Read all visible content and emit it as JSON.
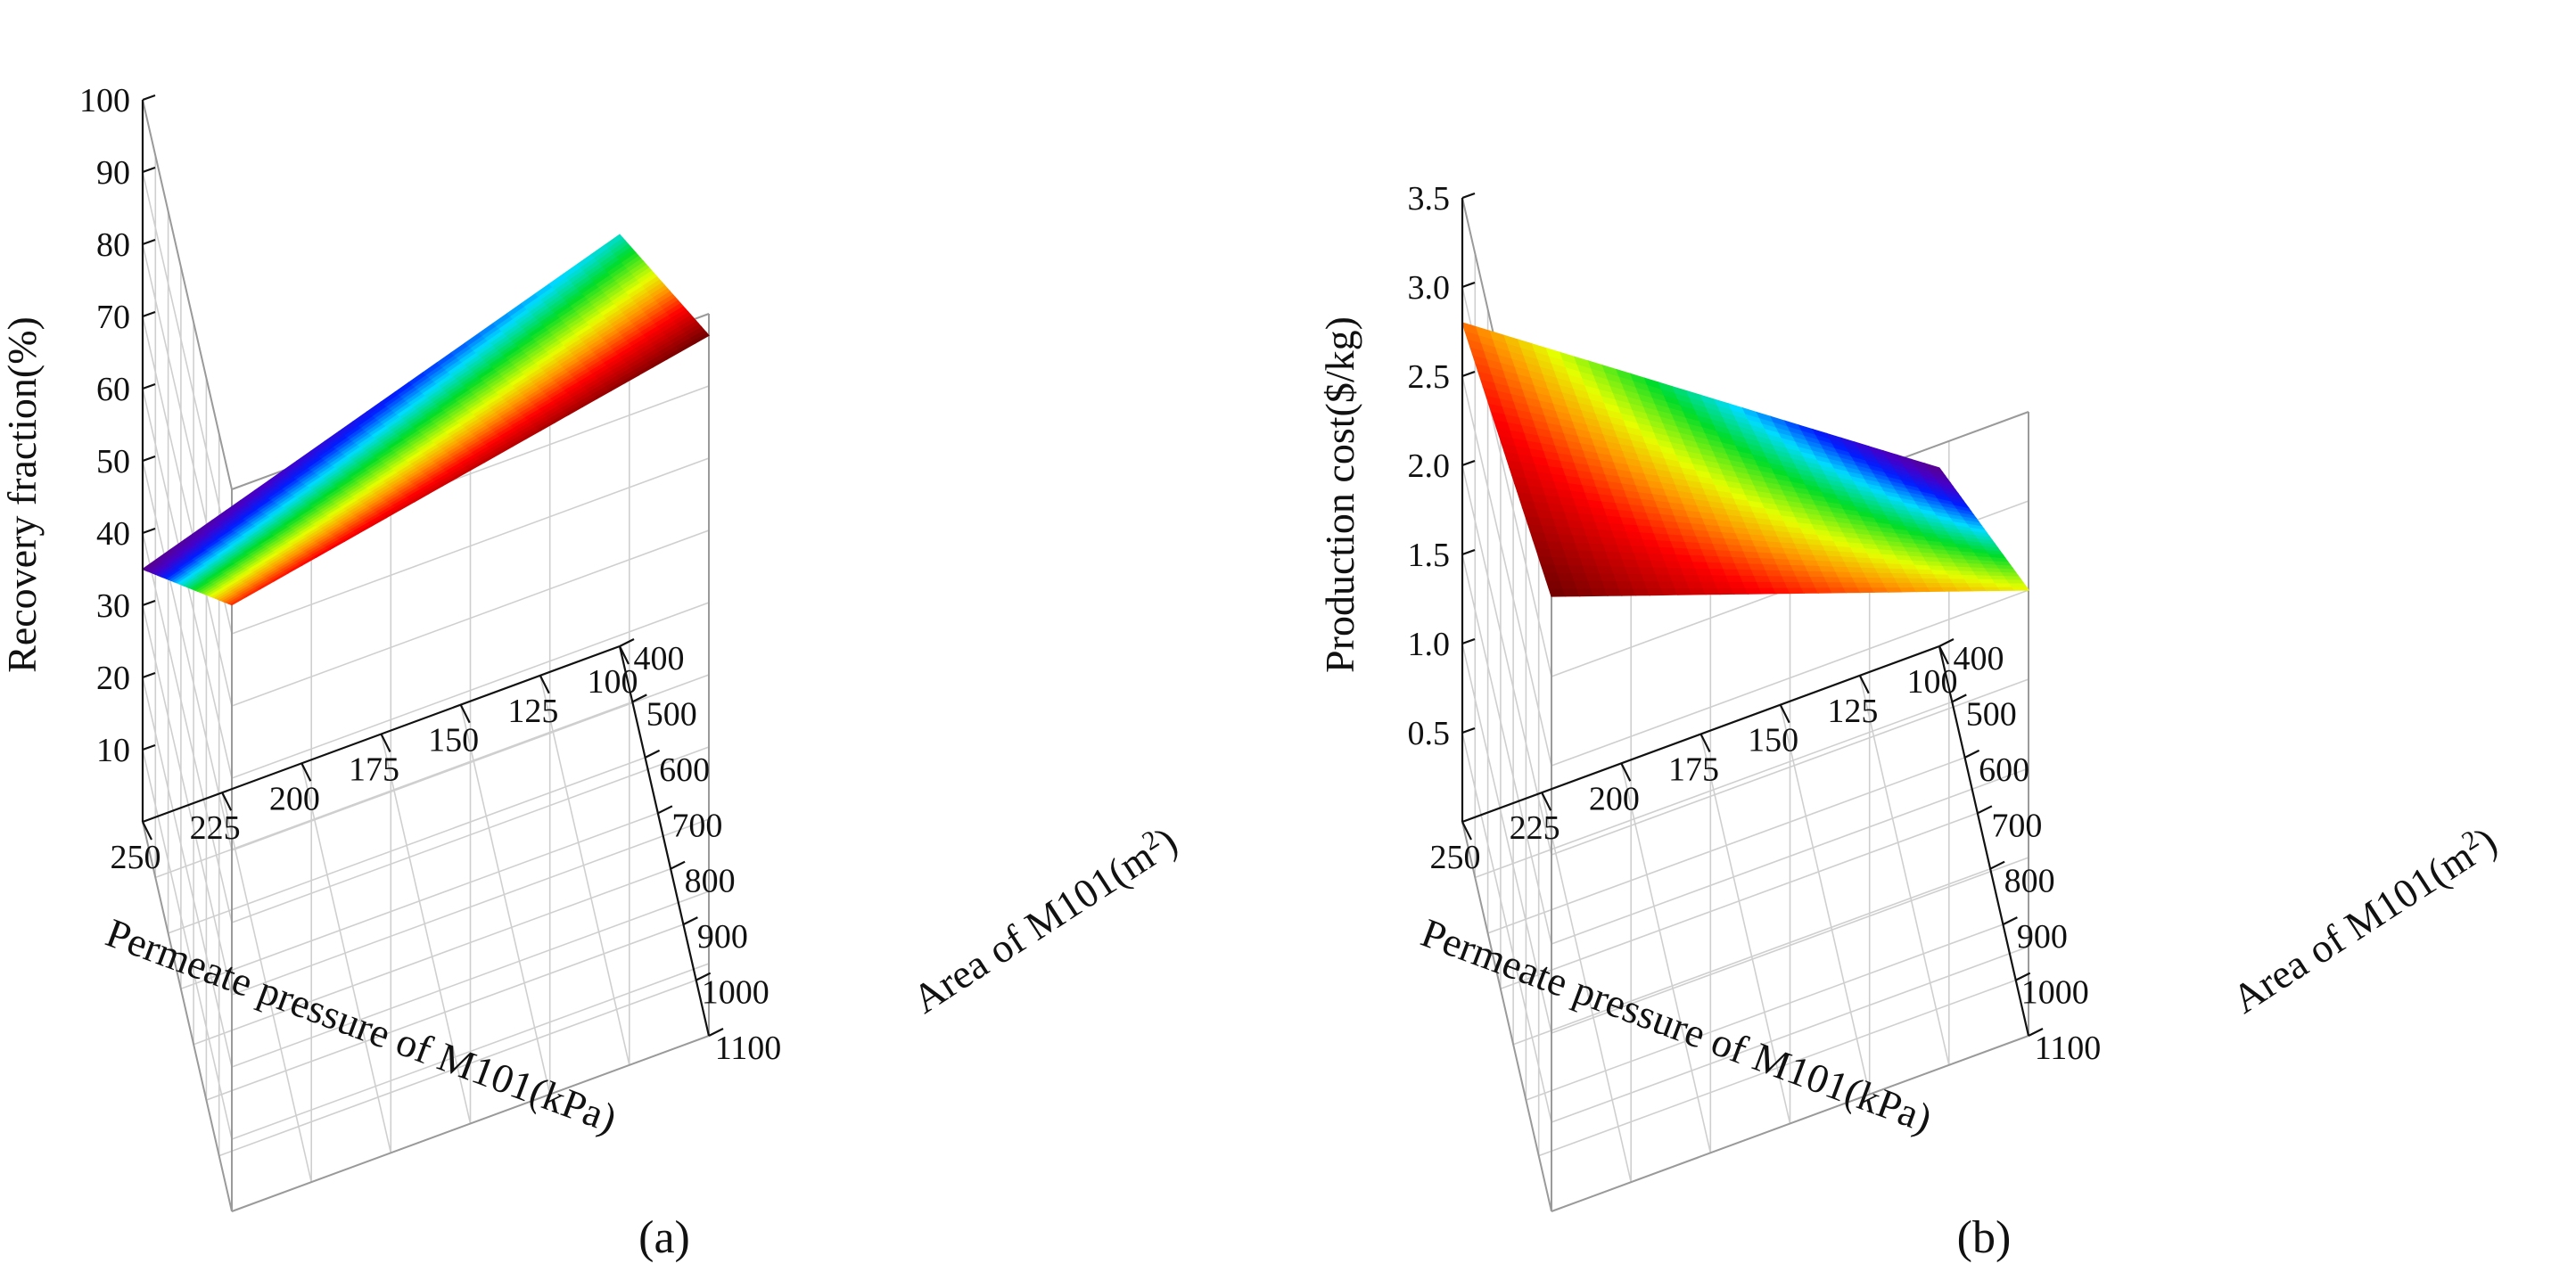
{
  "chart_data": [
    {
      "type": "surface3d",
      "panel_label": "(a)",
      "xlabel": "Permeate pressure of M101(kPa)",
      "ylabel_prefix": "Area of M101(m",
      "ylabel_sup": "2",
      "ylabel_suffix": ")",
      "zlabel": "Recovery fraction(%)",
      "x_ticks": [
        "100",
        "125",
        "150",
        "175",
        "200",
        "225",
        "250"
      ],
      "y_ticks": [
        "400",
        "500",
        "600",
        "700",
        "800",
        "900",
        "1000",
        "1100"
      ],
      "z_ticks": [
        "10",
        "20",
        "30",
        "40",
        "50",
        "60",
        "70",
        "80",
        "90",
        "100"
      ],
      "xlim": [
        100,
        250
      ],
      "ylim": [
        400,
        1100
      ],
      "zlim": [
        0,
        100
      ],
      "corners": [
        {
          "pressure": 250,
          "area": 400,
          "value": 35
        },
        {
          "pressure": 100,
          "area": 400,
          "value": 57
        },
        {
          "pressure": 100,
          "area": 1100,
          "value": 97
        },
        {
          "pressure": 250,
          "area": 1100,
          "value": 84
        }
      ],
      "colormap": "rainbow (violet → blue → cyan → green → yellow → orange → red → dark red)"
    },
    {
      "type": "surface3d",
      "panel_label": "(b)",
      "xlabel": "Permeate pressure of M101(kPa)",
      "ylabel_prefix": "Area of M101(m",
      "ylabel_sup": "2",
      "ylabel_suffix": ")",
      "zlabel": "Production cost($/kg)",
      "x_ticks": [
        "100",
        "125",
        "150",
        "175",
        "200",
        "225",
        "250"
      ],
      "y_ticks": [
        "400",
        "500",
        "600",
        "700",
        "800",
        "900",
        "1000",
        "1100"
      ],
      "z_ticks": [
        "0.5",
        "1.0",
        "1.5",
        "2.0",
        "2.5",
        "3.0",
        "3.5"
      ],
      "xlim": [
        100,
        250
      ],
      "ylim": [
        400,
        1100
      ],
      "zlim": [
        0,
        3.5
      ],
      "corners": [
        {
          "pressure": 250,
          "area": 400,
          "value": 2.8
        },
        {
          "pressure": 100,
          "area": 400,
          "value": 1.0
        },
        {
          "pressure": 100,
          "area": 1100,
          "value": 2.5
        },
        {
          "pressure": 250,
          "area": 1100,
          "value": 3.45
        }
      ],
      "colormap": "rainbow (violet → blue → cyan → green → yellow → orange → red → dark red)"
    }
  ]
}
